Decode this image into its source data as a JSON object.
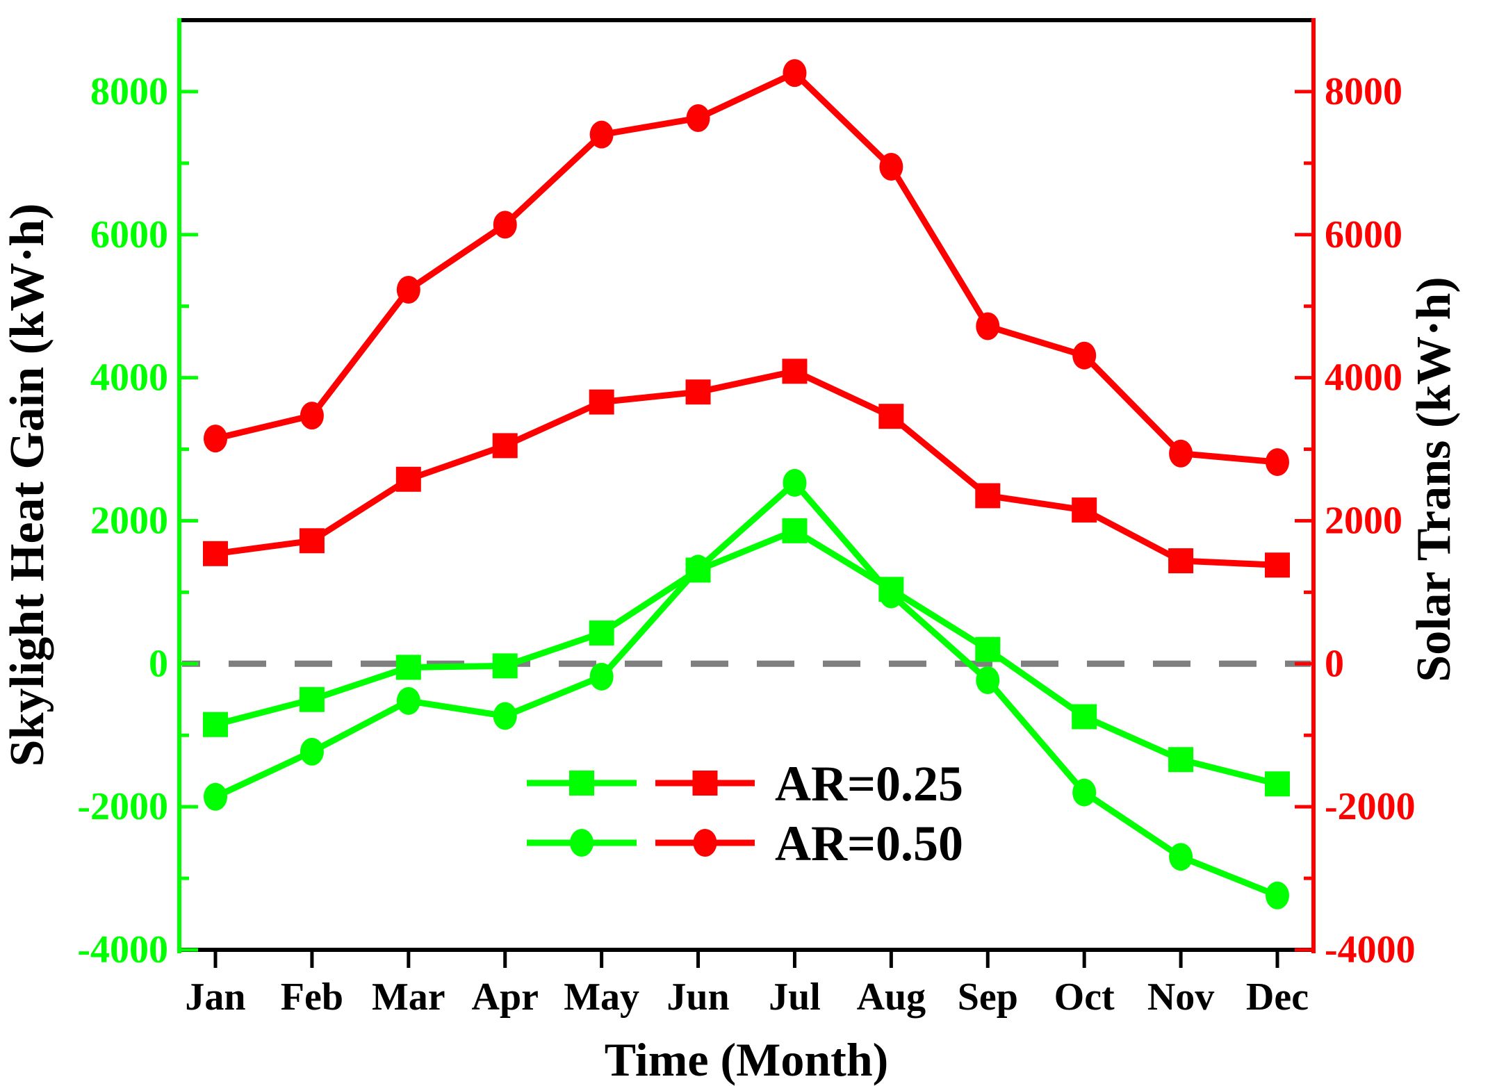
{
  "figure": {
    "background": "#ffffff"
  },
  "chart_data": {
    "type": "line",
    "title": "",
    "xlabel": "Time (Month)",
    "ylabel_left": "Skylight Heat Gain (kW·h)",
    "ylabel_right": "Solar Trans (kW·h)",
    "categories": [
      "Jan",
      "Feb",
      "Mar",
      "Apr",
      "May",
      "Jun",
      "Jul",
      "Aug",
      "Sep",
      "Oct",
      "Nov",
      "Dec"
    ],
    "ylim": [
      -4000,
      9000
    ],
    "yticks_major": [
      -4000,
      -2000,
      0,
      2000,
      4000,
      6000,
      8000
    ],
    "ytick_labels": [
      "-4000",
      "-2000",
      "0",
      "2000",
      "4000",
      "6000",
      "8000"
    ],
    "yticks_minor": [
      -3000,
      -1000,
      1000,
      3000,
      5000,
      7000
    ],
    "grid": false,
    "zero_line": {
      "value": 0,
      "color": "#7f7f7f",
      "style": "dashed"
    },
    "axis_colors": {
      "left": "#00ff00",
      "right": "#ff0000",
      "bottom": "#000000",
      "top": "#000000"
    },
    "legend": [
      {
        "label": "AR=0.25",
        "marker": "square",
        "colors": [
          "#00ff00",
          "#ff0000"
        ]
      },
      {
        "label": "AR=0.50",
        "marker": "circle",
        "colors": [
          "#00ff00",
          "#ff0000"
        ]
      }
    ],
    "legend_position": "lower-center",
    "series": [
      {
        "name": "Solar Trans AR=0.25",
        "axis": "right",
        "color": "#ff0000",
        "marker": "square",
        "values": [
          1540,
          1720,
          2580,
          3050,
          3660,
          3800,
          4090,
          3460,
          2350,
          2150,
          1440,
          1380
        ]
      },
      {
        "name": "Solar Trans AR=0.50",
        "axis": "right",
        "color": "#ff0000",
        "marker": "circle",
        "values": [
          3150,
          3470,
          5230,
          6140,
          7400,
          7630,
          8260,
          6950,
          4720,
          4310,
          2940,
          2820
        ]
      },
      {
        "name": "Skylight Heat Gain AR=0.25",
        "axis": "left",
        "color": "#00ff00",
        "marker": "square",
        "values": [
          -850,
          -500,
          -50,
          -30,
          430,
          1310,
          1860,
          1040,
          200,
          -740,
          -1340,
          -1680
        ]
      },
      {
        "name": "Skylight Heat Gain AR=0.50",
        "axis": "left",
        "color": "#00ff00",
        "marker": "circle",
        "values": [
          -1860,
          -1230,
          -520,
          -730,
          -180,
          1330,
          2530,
          970,
          -230,
          -1800,
          -2700,
          -3240
        ]
      }
    ]
  }
}
